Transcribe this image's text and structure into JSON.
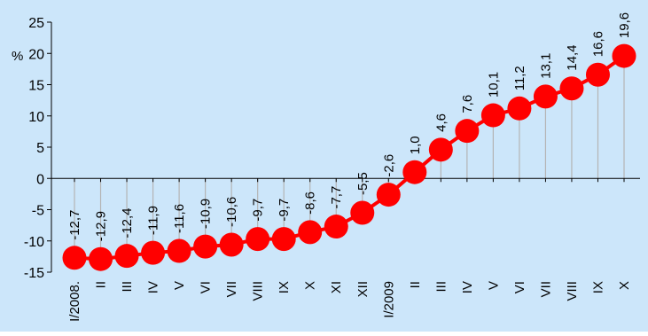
{
  "chart_data": {
    "type": "line",
    "ylabel": "%",
    "ylim": [
      -15,
      25
    ],
    "yticks": [
      25,
      20,
      15,
      10,
      5,
      0,
      -5,
      -10,
      -15
    ],
    "grid": false,
    "legend": "none",
    "categories": [
      "I/2008.",
      "II",
      "III",
      "IV",
      "V",
      "VI",
      "VII",
      "VIII",
      "IX",
      "X",
      "XI",
      "XII",
      "I/2009",
      "II",
      "III",
      "IV",
      "V",
      "VI",
      "VII",
      "VIII",
      "IX",
      "X"
    ],
    "values": [
      -12.7,
      -12.9,
      -12.4,
      -11.9,
      -11.6,
      -10.9,
      -10.6,
      -9.7,
      -9.7,
      -8.6,
      -7.7,
      -5.5,
      -2.6,
      1.0,
      4.6,
      7.6,
      10.1,
      11.2,
      13.1,
      14.4,
      16.6,
      19.6
    ],
    "data_labels": [
      "-12,7",
      "-12,9",
      "-12,4",
      "-11,9",
      "-11,6",
      "-10,9",
      "-10,6",
      "-9,7",
      "-9,7",
      "-8,6",
      "-7,7",
      "-5,5",
      "-2,6",
      "1,0",
      "4,6",
      "7,6",
      "10,1",
      "11,2",
      "13,1",
      "14,4",
      "16,6",
      "19,6"
    ],
    "colors": {
      "background": "#CCE6FA",
      "marker": "#FF0000",
      "line": "#FF0000",
      "drop_line": "#B4B4B4",
      "axis": "#000000"
    }
  }
}
